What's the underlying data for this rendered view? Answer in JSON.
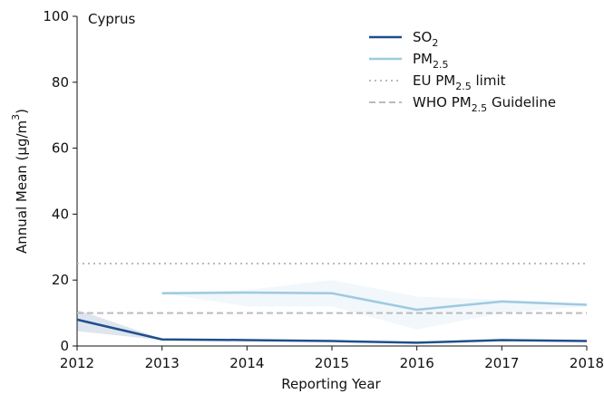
{
  "chart_data": {
    "type": "line",
    "annotation": "Cyprus",
    "xlabel": "Reporting Year",
    "ylabel": "Annual Mean (μg/m3)",
    "x": [
      2012,
      2013,
      2014,
      2015,
      2016,
      2017,
      2018
    ],
    "xlim": [
      2012,
      2018
    ],
    "xticks": [
      2012,
      2013,
      2014,
      2015,
      2016,
      2017,
      2018
    ],
    "ylim": [
      0,
      100
    ],
    "yticks": [
      0,
      20,
      40,
      60,
      80,
      100
    ],
    "legend": "upper right",
    "series": [
      {
        "name": "SO2",
        "color": "#1f4e8c",
        "values": [
          8,
          2,
          1.8,
          1.5,
          1,
          1.8,
          1.5
        ],
        "band_lower": [
          4.5,
          1.8,
          1.6,
          1.3,
          0.8,
          1.6,
          1.3
        ],
        "band_upper": [
          11,
          2.2,
          2,
          1.7,
          1.2,
          2,
          1.7
        ]
      },
      {
        "name": "PM2.5",
        "color": "#9ecae1",
        "values": [
          null,
          16,
          16.2,
          16,
          11,
          13.5,
          12.5
        ],
        "band_lower": [
          null,
          16,
          12,
          12,
          5,
          10,
          12
        ],
        "band_upper": [
          null,
          16,
          17,
          20,
          15,
          14,
          13
        ]
      }
    ],
    "hlines": [
      {
        "name": "EU PM2.5 limit",
        "value": 25,
        "color": "#bbbbbb",
        "style": "dotted"
      },
      {
        "name": "WHO PM2.5 Guideline",
        "value": 10,
        "color": "#bbbbbb",
        "style": "dashed"
      }
    ]
  }
}
